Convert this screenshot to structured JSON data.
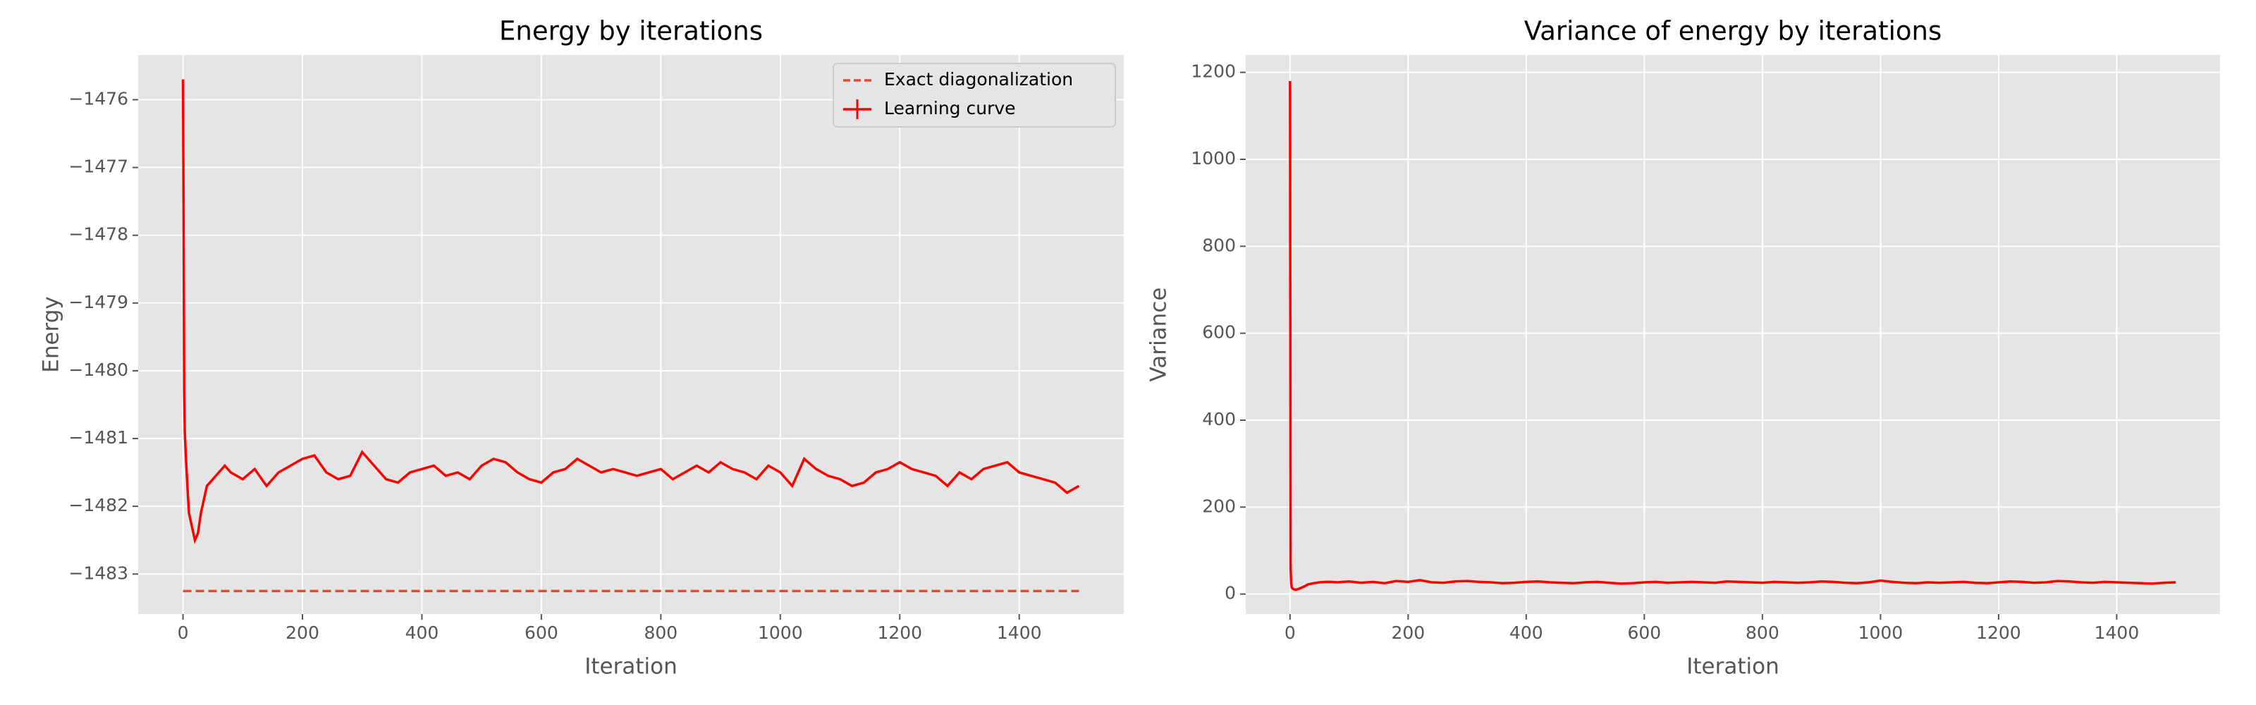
{
  "chart_data": [
    {
      "type": "line",
      "title": "Energy by iterations",
      "xlabel": "Iteration",
      "ylabel": "Energy",
      "xlim": [
        -75,
        1575
      ],
      "ylim": [
        -1483.59,
        -1475.34
      ],
      "xticks": [
        0,
        200,
        400,
        600,
        800,
        1000,
        1200,
        1400
      ],
      "yticks": [
        {
          "value": -1476,
          "label": "−1476"
        },
        {
          "value": -1477,
          "label": "−1477"
        },
        {
          "value": -1478,
          "label": "−1478"
        },
        {
          "value": -1479,
          "label": "−1479"
        },
        {
          "value": -1480,
          "label": "−1480"
        },
        {
          "value": -1481,
          "label": "−1481"
        },
        {
          "value": -1482,
          "label": "−1482"
        },
        {
          "value": -1483,
          "label": "−1483"
        }
      ],
      "grid": true,
      "legend": "upper right",
      "series": [
        {
          "name": "Exact diagonalization",
          "color": "#e24a33",
          "linestyle": "dashed",
          "x": [
            0,
            1500
          ],
          "values": [
            -1483.25,
            -1483.25
          ]
        },
        {
          "name": "Learning curve",
          "color": "#ff0000",
          "linestyle": "solid",
          "errorbar": true,
          "x": [
            0,
            1,
            2,
            3,
            5,
            8,
            10,
            15,
            20,
            25,
            30,
            40,
            50,
            60,
            70,
            80,
            100,
            120,
            140,
            160,
            180,
            200,
            220,
            240,
            260,
            280,
            300,
            320,
            340,
            360,
            380,
            400,
            420,
            440,
            460,
            480,
            500,
            520,
            540,
            560,
            580,
            600,
            620,
            640,
            660,
            680,
            700,
            720,
            740,
            760,
            780,
            800,
            820,
            840,
            860,
            880,
            900,
            920,
            940,
            960,
            980,
            1000,
            1020,
            1040,
            1060,
            1080,
            1100,
            1120,
            1140,
            1160,
            1180,
            1200,
            1220,
            1240,
            1260,
            1280,
            1300,
            1320,
            1340,
            1360,
            1380,
            1400,
            1420,
            1440,
            1460,
            1480,
            1500
          ],
          "values": [
            -1475.7,
            -1477.6,
            -1480.3,
            -1480.9,
            -1481.3,
            -1481.8,
            -1482.1,
            -1482.3,
            -1482.5,
            -1482.4,
            -1482.1,
            -1481.7,
            -1481.6,
            -1481.5,
            -1481.4,
            -1481.5,
            -1481.6,
            -1481.45,
            -1481.7,
            -1481.5,
            -1481.4,
            -1481.3,
            -1481.25,
            -1481.5,
            -1481.6,
            -1481.55,
            -1481.2,
            -1481.4,
            -1481.6,
            -1481.65,
            -1481.5,
            -1481.45,
            -1481.4,
            -1481.55,
            -1481.5,
            -1481.6,
            -1481.4,
            -1481.3,
            -1481.35,
            -1481.5,
            -1481.6,
            -1481.65,
            -1481.5,
            -1481.45,
            -1481.3,
            -1481.4,
            -1481.5,
            -1481.45,
            -1481.5,
            -1481.55,
            -1481.5,
            -1481.45,
            -1481.6,
            -1481.5,
            -1481.4,
            -1481.5,
            -1481.35,
            -1481.45,
            -1481.5,
            -1481.6,
            -1481.4,
            -1481.5,
            -1481.7,
            -1481.3,
            -1481.45,
            -1481.55,
            -1481.6,
            -1481.7,
            -1481.65,
            -1481.5,
            -1481.45,
            -1481.35,
            -1481.45,
            -1481.5,
            -1481.55,
            -1481.7,
            -1481.5,
            -1481.6,
            -1481.45,
            -1481.4,
            -1481.35,
            -1481.5,
            -1481.55,
            -1481.6,
            -1481.65,
            -1481.8,
            -1481.7
          ]
        }
      ]
    },
    {
      "type": "line",
      "title": "Variance of energy by iterations",
      "xlabel": "Iteration",
      "ylabel": "Variance",
      "xlim": [
        -75,
        1575
      ],
      "ylim": [
        -46,
        1240
      ],
      "xticks": [
        0,
        200,
        400,
        600,
        800,
        1000,
        1200,
        1400
      ],
      "yticks": [
        0,
        200,
        400,
        600,
        800,
        1000,
        1200
      ],
      "grid": true,
      "series": [
        {
          "name": "Variance",
          "color": "#ff0000",
          "linestyle": "solid",
          "x": [
            0,
            1,
            2,
            3,
            5,
            8,
            10,
            15,
            20,
            25,
            30,
            40,
            50,
            60,
            70,
            80,
            100,
            120,
            140,
            160,
            180,
            200,
            220,
            240,
            260,
            280,
            300,
            320,
            340,
            360,
            380,
            400,
            420,
            440,
            460,
            480,
            500,
            520,
            540,
            560,
            580,
            600,
            620,
            640,
            660,
            680,
            700,
            720,
            740,
            760,
            780,
            800,
            820,
            840,
            860,
            880,
            900,
            920,
            940,
            960,
            980,
            1000,
            1020,
            1040,
            1060,
            1080,
            1100,
            1120,
            1140,
            1160,
            1180,
            1200,
            1220,
            1240,
            1260,
            1280,
            1300,
            1320,
            1340,
            1360,
            1380,
            1400,
            1420,
            1440,
            1460,
            1480,
            1500
          ],
          "values": [
            1180,
            60,
            25,
            15,
            12,
            10,
            10,
            12,
            15,
            18,
            22,
            25,
            27,
            28,
            28,
            27,
            29,
            26,
            28,
            25,
            30,
            28,
            32,
            27,
            26,
            29,
            30,
            28,
            27,
            25,
            26,
            28,
            29,
            27,
            26,
            25,
            27,
            28,
            26,
            24,
            25,
            27,
            28,
            26,
            27,
            28,
            27,
            26,
            29,
            28,
            27,
            26,
            28,
            27,
            26,
            27,
            29,
            28,
            26,
            25,
            27,
            31,
            28,
            26,
            25,
            27,
            26,
            27,
            28,
            26,
            25,
            27,
            29,
            28,
            26,
            27,
            30,
            29,
            27,
            26,
            28,
            27,
            26,
            25,
            24,
            26,
            27
          ]
        }
      ]
    }
  ]
}
